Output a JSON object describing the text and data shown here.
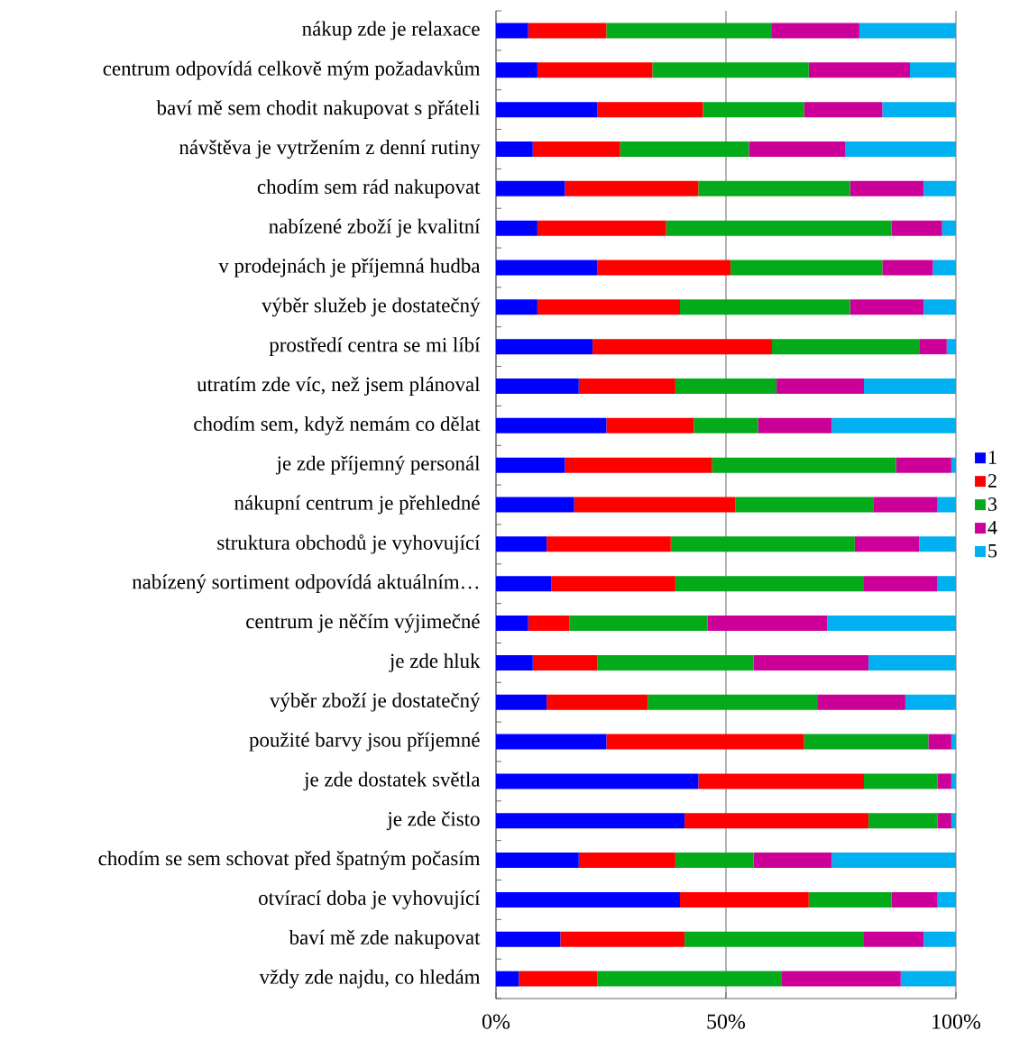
{
  "chart_data": {
    "type": "bar",
    "orientation": "horizontal",
    "stacked": true,
    "categories": [
      "nákup zde je relaxace",
      "centrum odpovídá celkově mým požadavkům",
      "baví mě sem chodit nakupovat s přáteli",
      "návštěva je vytržením z denní rutiny",
      "chodím sem rád nakupovat",
      "nabízené zboží je kvalitní",
      "v prodejnách je příjemná hudba",
      "výběr služeb je dostatečný",
      "prostředí centra se mi líbí",
      "utratím zde víc, než jsem plánoval",
      "chodím sem, když nemám co dělat",
      "je zde příjemný personál",
      "nákupní centrum je přehledné",
      "struktura obchodů je vyhovující",
      "nabízený sortiment odpovídá aktuálním…",
      "centrum je něčím výjimečné",
      "je zde hluk",
      "výběr zboží je dostatečný",
      "použité barvy jsou příjemné",
      "je zde dostatek světla",
      "je zde čisto",
      "chodím se sem schovat před špatným počasím",
      "otvírací doba je vyhovující",
      "baví mě zde nakupovat",
      "vždy zde najdu, co hledám"
    ],
    "series": [
      {
        "name": "1",
        "color": "#0000ff",
        "values": [
          7,
          9,
          22,
          8,
          15,
          9,
          22,
          9,
          21,
          18,
          24,
          15,
          17,
          11,
          12,
          7,
          8,
          11,
          24,
          44,
          41,
          18,
          40,
          14,
          5
        ]
      },
      {
        "name": "2",
        "color": "#ff0000",
        "values": [
          17,
          25,
          23,
          19,
          29,
          28,
          29,
          31,
          39,
          21,
          19,
          32,
          35,
          27,
          27,
          9,
          14,
          22,
          43,
          36,
          40,
          21,
          28,
          27,
          17
        ]
      },
      {
        "name": "3",
        "color": "#03aa19",
        "values": [
          36,
          34,
          22,
          28,
          33,
          49,
          33,
          37,
          32,
          22,
          14,
          40,
          30,
          40,
          41,
          30,
          34,
          37,
          27,
          16,
          15,
          17,
          18,
          39,
          40
        ]
      },
      {
        "name": "4",
        "color": "#cc0099",
        "values": [
          19,
          22,
          17,
          21,
          16,
          11,
          11,
          16,
          6,
          19,
          16,
          12,
          14,
          14,
          16,
          26,
          25,
          19,
          5,
          3,
          3,
          17,
          10,
          13,
          26
        ]
      },
      {
        "name": "5",
        "color": "#00b0f0",
        "values": [
          21,
          10,
          16,
          24,
          7,
          3,
          5,
          7,
          2,
          20,
          27,
          1,
          4,
          8,
          4,
          28,
          19,
          11,
          1,
          1,
          1,
          27,
          4,
          7,
          12
        ]
      }
    ],
    "xlim": [
      0,
      100
    ],
    "xticks": [
      {
        "value": 0,
        "label": "0%"
      },
      {
        "value": 50,
        "label": "50%"
      },
      {
        "value": 100,
        "label": "100%"
      }
    ],
    "grid": "x",
    "legend": "right"
  }
}
